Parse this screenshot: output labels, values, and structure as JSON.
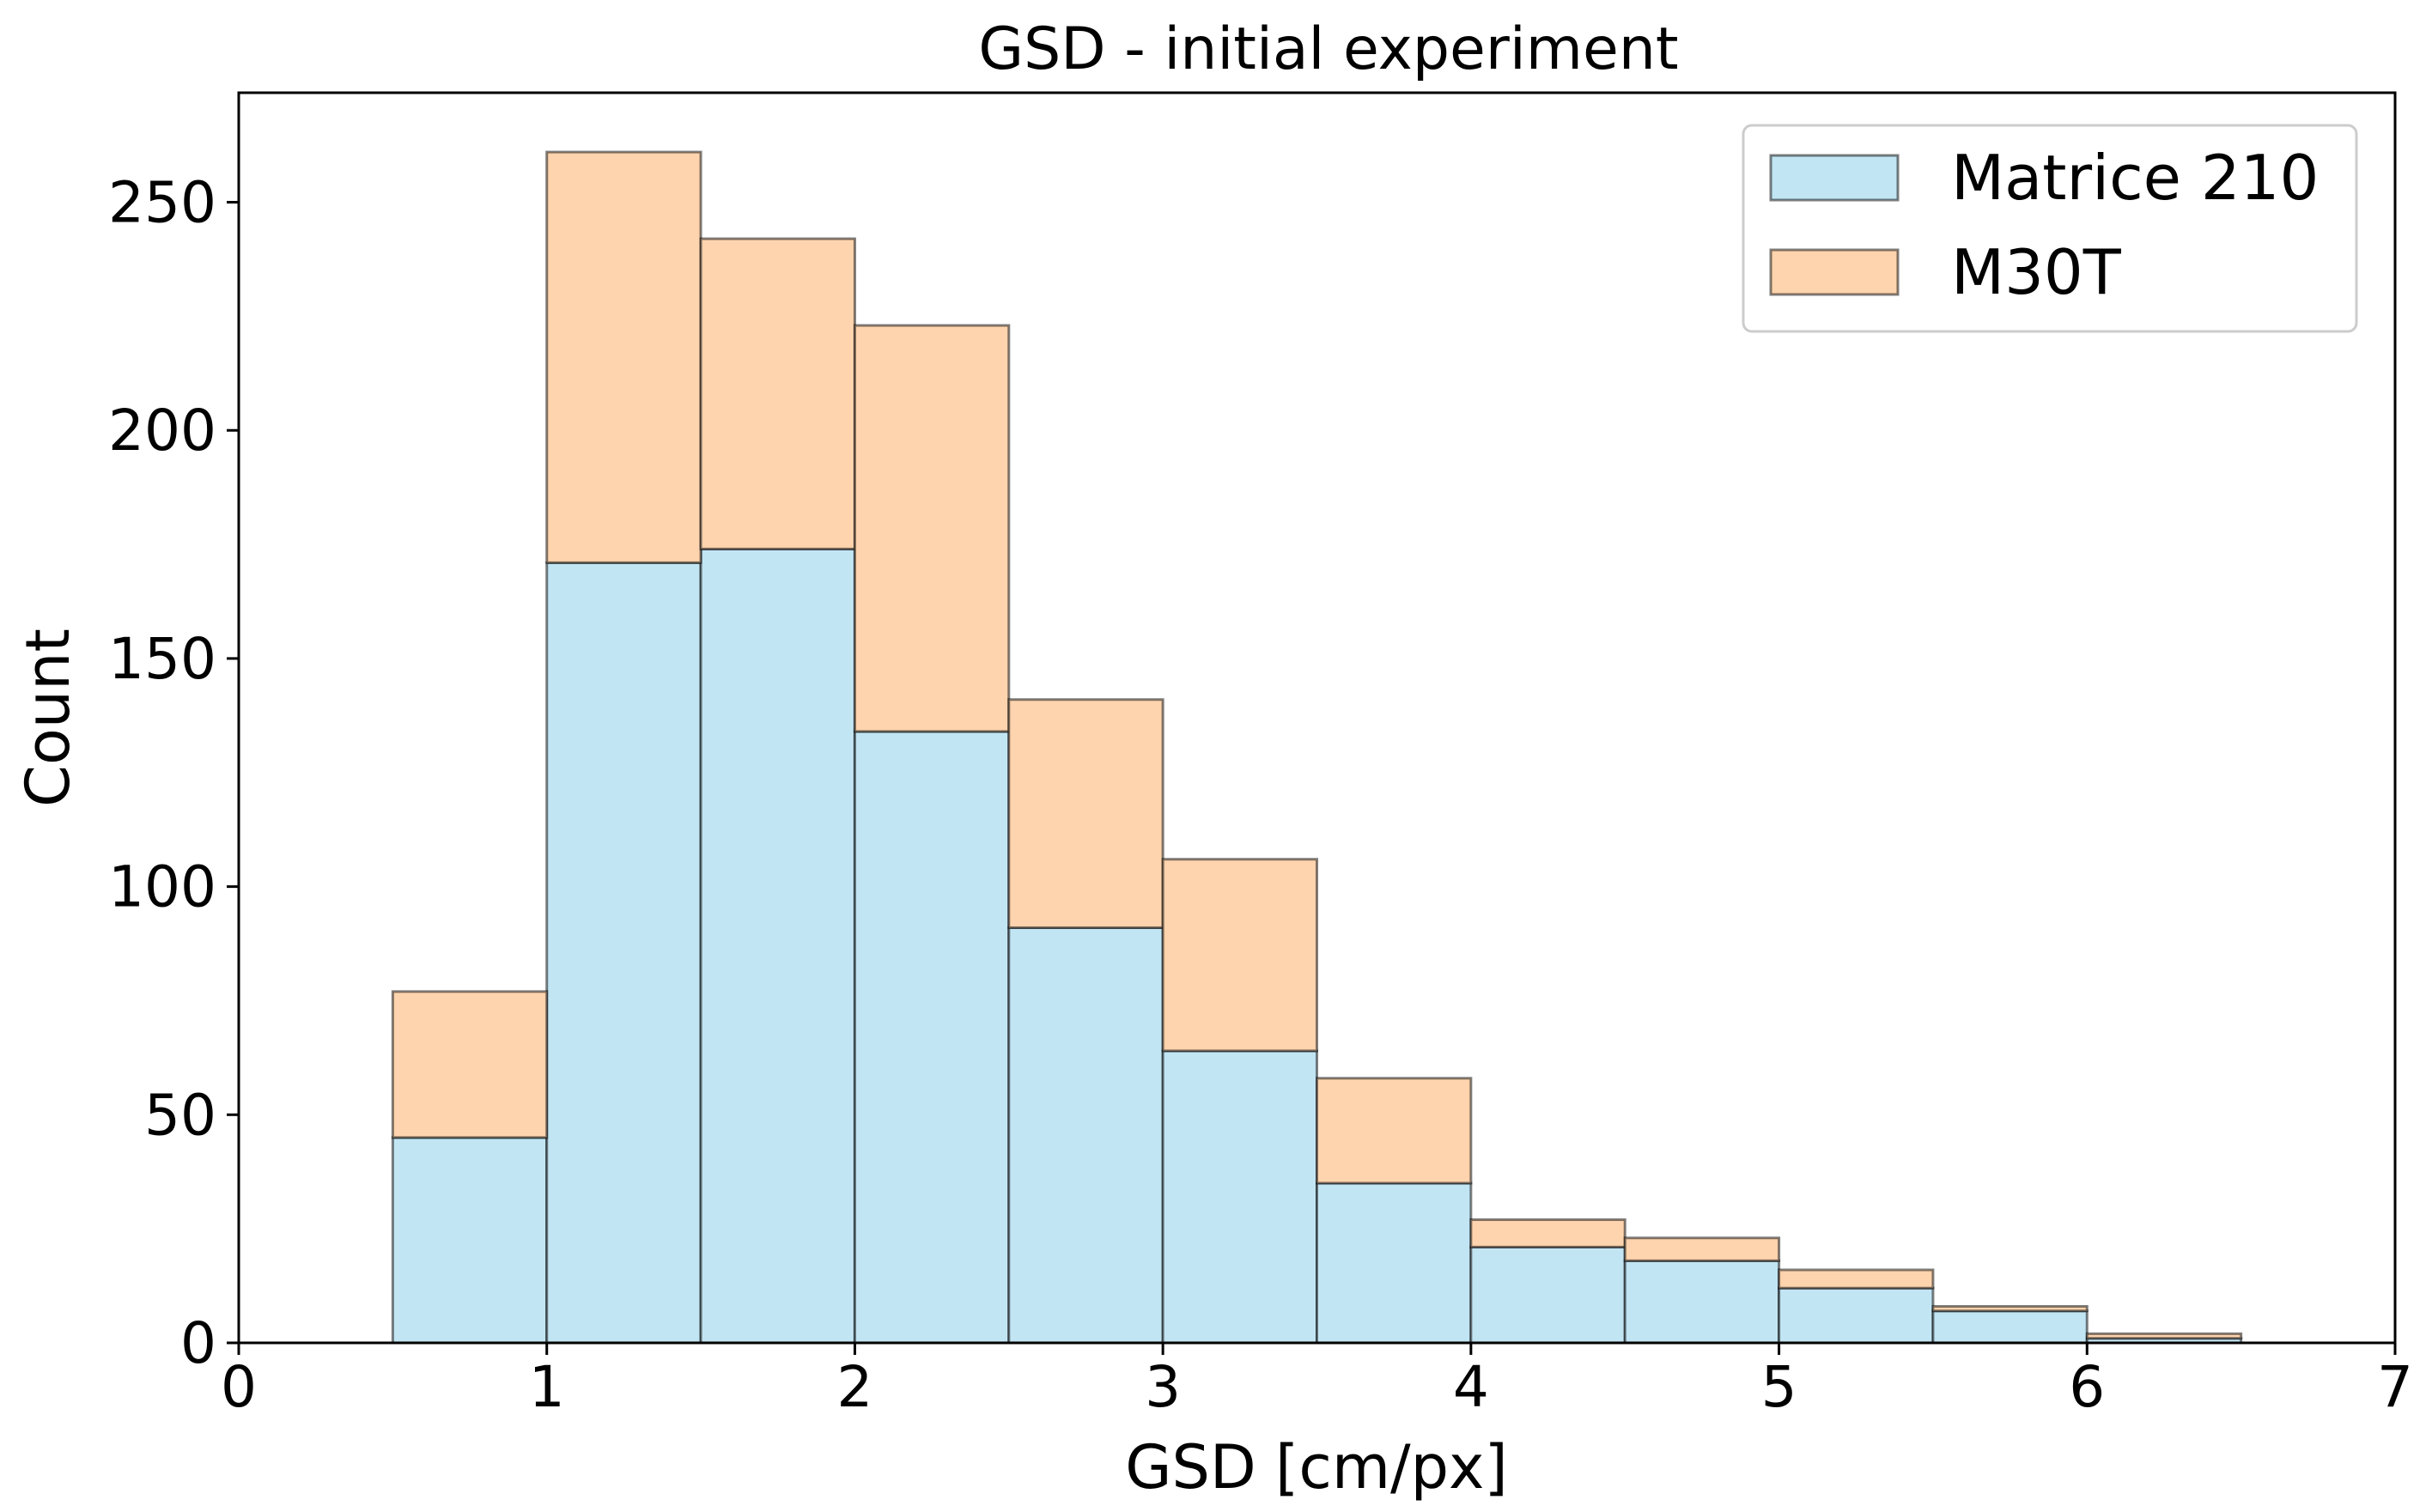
{
  "chart_data": {
    "type": "bar",
    "subtype": "stacked-histogram",
    "title": "GSD - initial experiment",
    "xlabel": "GSD [cm/px]",
    "ylabel": "Count",
    "xlim": [
      0,
      7
    ],
    "ylim": [
      0,
      274
    ],
    "xticks": [
      0,
      1,
      2,
      3,
      4,
      5,
      6,
      7
    ],
    "yticks": [
      0,
      50,
      100,
      150,
      200,
      250
    ],
    "bin_edges": [
      0.5,
      1.0,
      1.5,
      2.0,
      2.5,
      3.0,
      3.5,
      4.0,
      4.5,
      5.0,
      5.5,
      6.0,
      6.5
    ],
    "series": [
      {
        "name": "Matrice 210",
        "color": "#c2e5f3",
        "values": [
          45,
          171,
          174,
          134,
          91,
          64,
          35,
          21,
          18,
          12,
          7,
          1
        ]
      },
      {
        "name": "M30T",
        "color": "#fed4ae",
        "values": [
          32,
          90,
          68,
          89,
          50,
          42,
          23,
          6,
          5,
          4,
          1,
          1
        ]
      }
    ],
    "legend_position": "top-right",
    "grid": false
  }
}
